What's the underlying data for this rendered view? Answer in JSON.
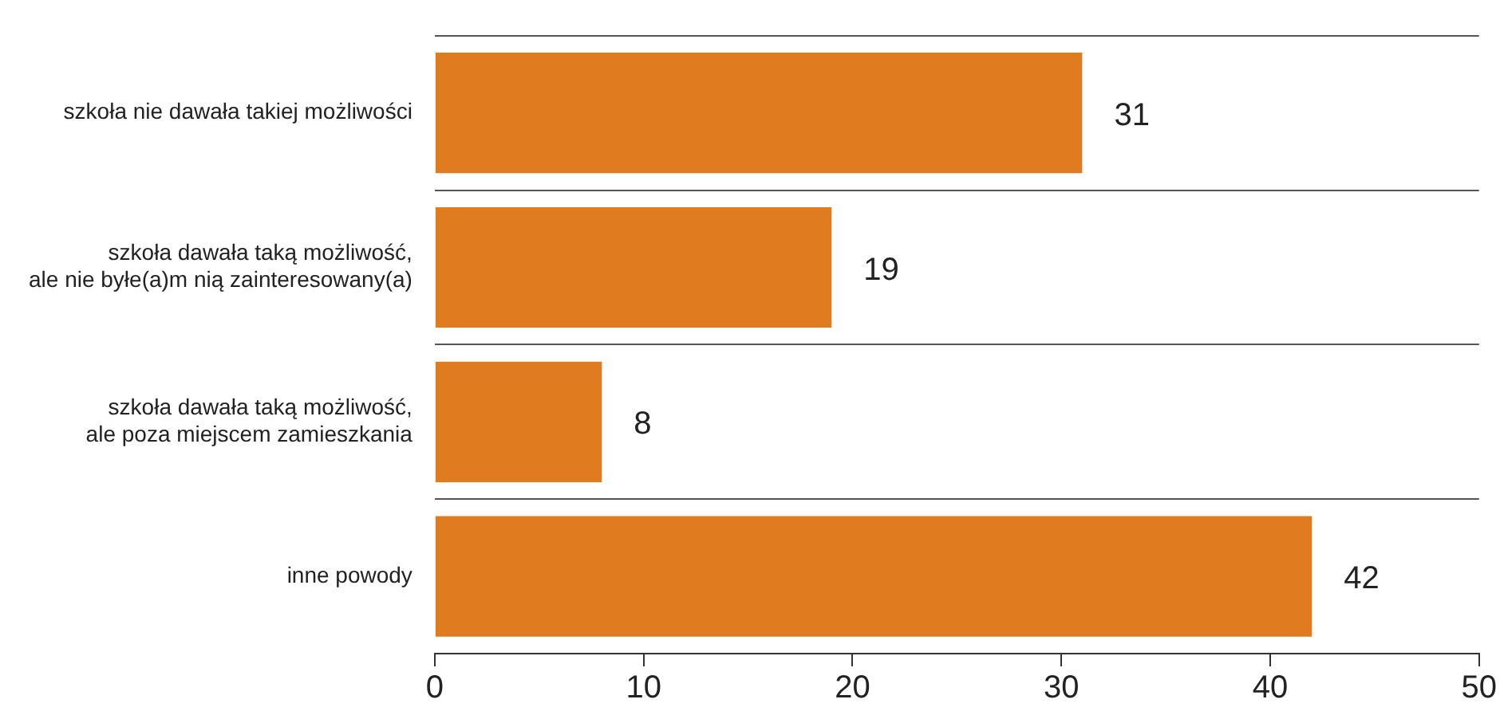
{
  "chart_data": {
    "type": "bar",
    "orientation": "horizontal",
    "categories": [
      "szkoła nie dawała takiej możliwości",
      "szkoła dawała taką możliwość,\nale nie byłe(a)m nią zainteresowany(a)",
      "szkoła dawała taką możliwość,\nale poza miejscem zamieszkania",
      "inne powody"
    ],
    "values": [
      31,
      19,
      8,
      42
    ],
    "color": "#e07b20",
    "xlim": [
      0,
      50
    ],
    "xticks": [
      0,
      10,
      20,
      30,
      40,
      50
    ],
    "grid": "y",
    "data_labels": true
  }
}
